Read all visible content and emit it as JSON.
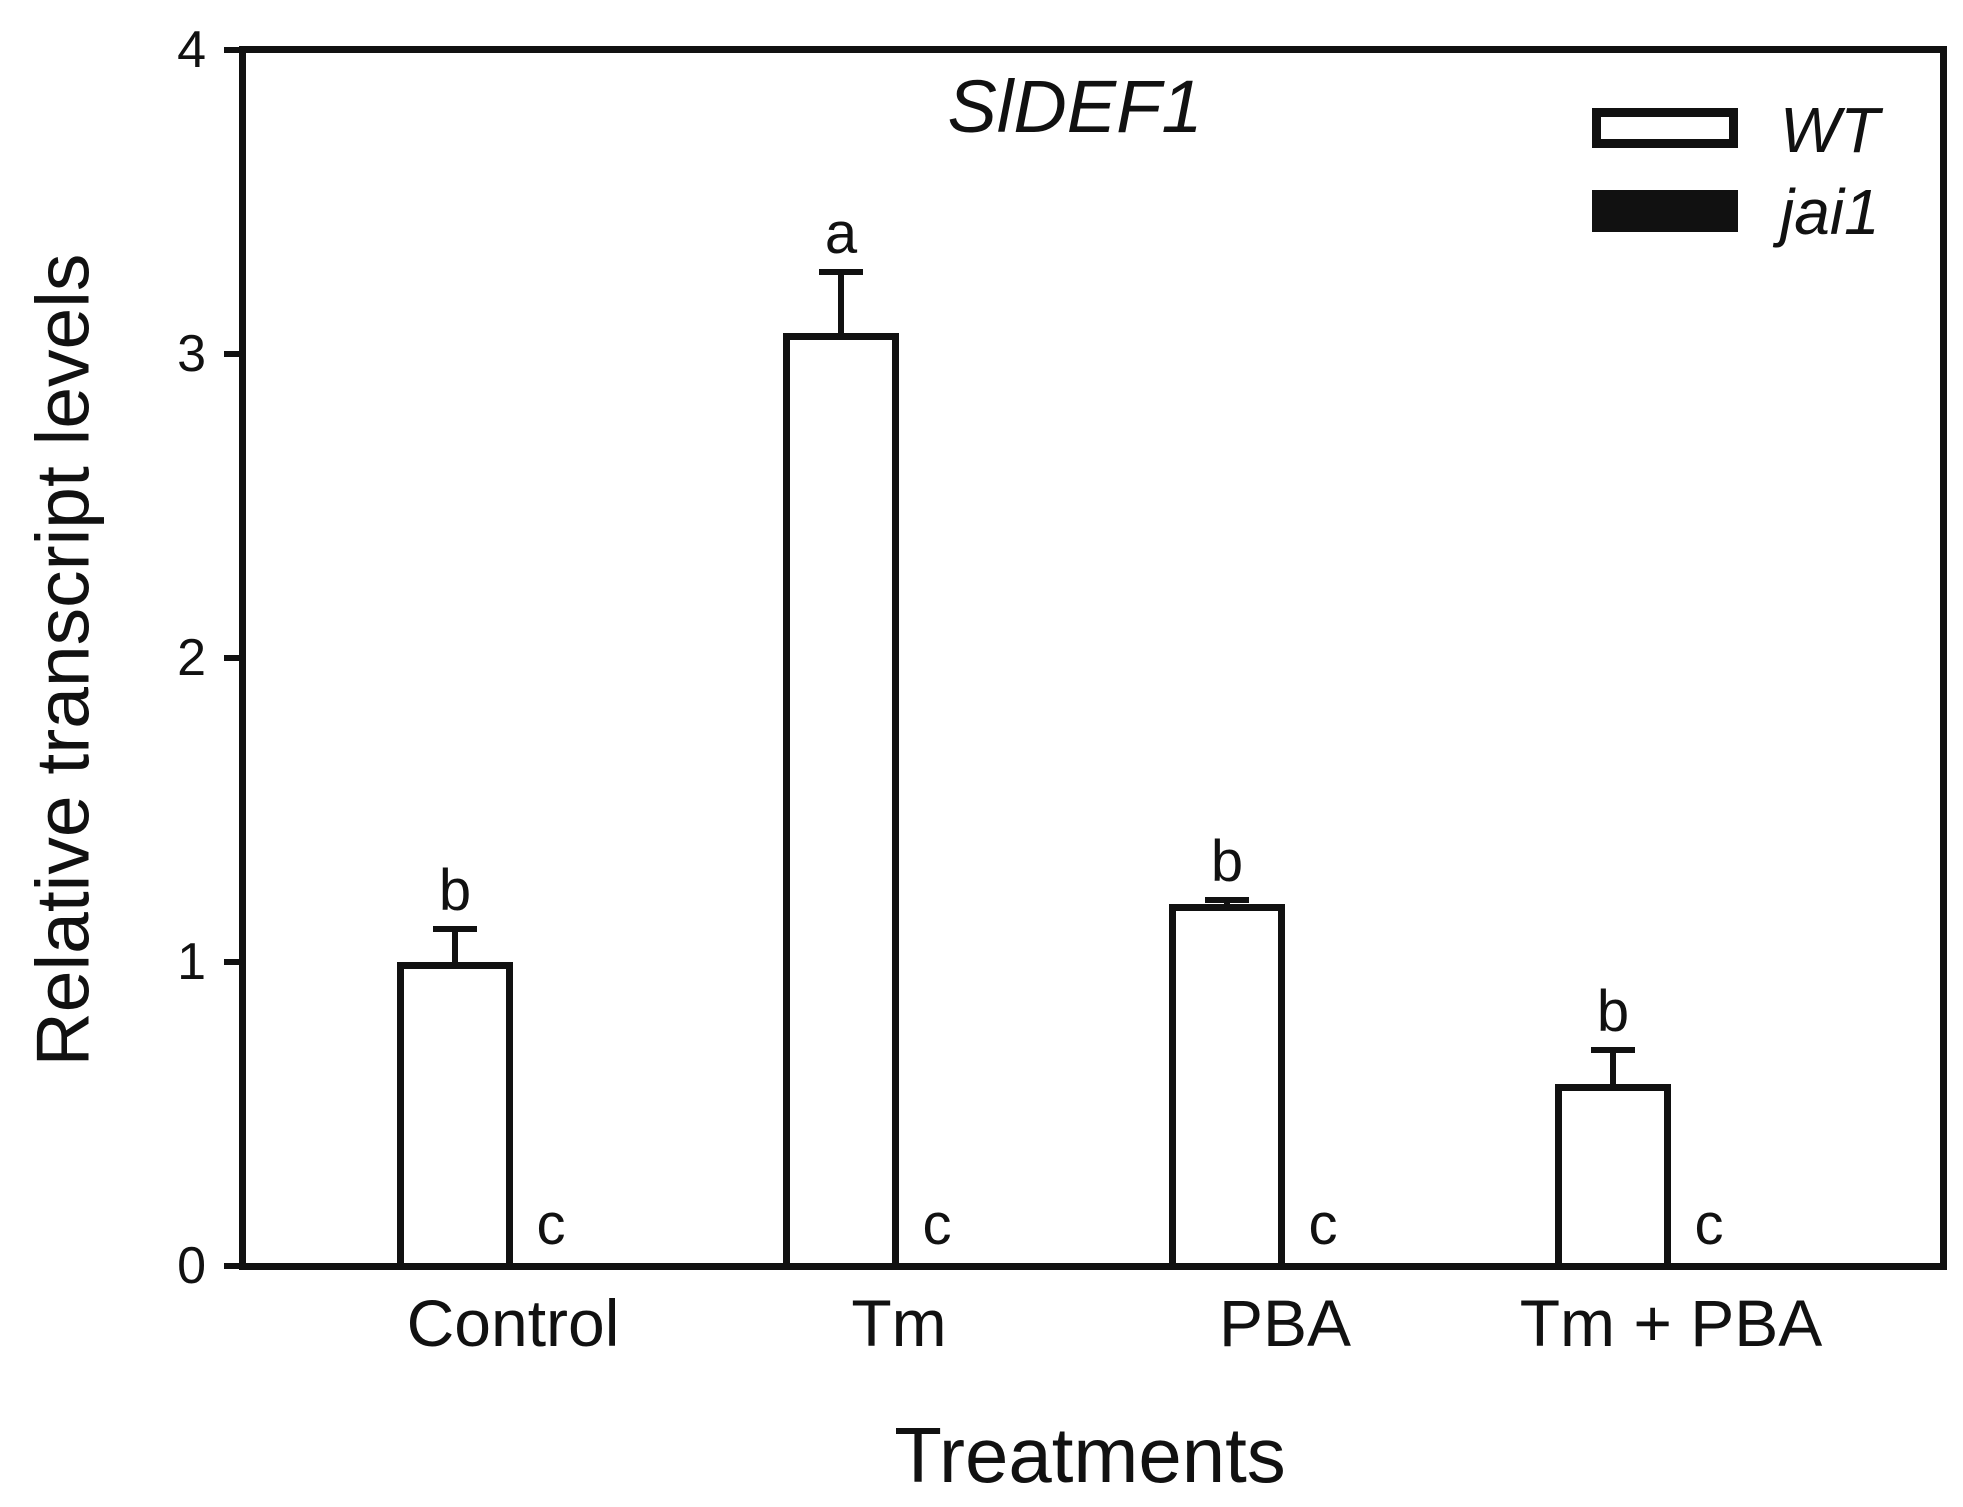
{
  "figure": {
    "background": "#ffffff",
    "ink": "#111111"
  },
  "chart_data": {
    "type": "bar",
    "title": "SlDEF1",
    "xlabel": "Treatments",
    "ylabel": "Relative transcript levels",
    "ylim": [
      0,
      4
    ],
    "yticks": [
      0,
      1,
      2,
      3,
      4
    ],
    "grid": false,
    "legend_position": "top-right-inside",
    "categories": [
      "Control",
      "Tm",
      "PBA",
      "Tm + PBA"
    ],
    "series": [
      {
        "name": "WT",
        "fill": "#ffffff",
        "border": "#111111",
        "values": [
          1.0,
          3.07,
          1.19,
          0.6
        ],
        "errors": [
          0.11,
          0.2,
          0.015,
          0.11
        ],
        "sig_letters": [
          "b",
          "a",
          "b",
          "b"
        ]
      },
      {
        "name": "jai1",
        "fill": "#111111",
        "border": "#111111",
        "values": [
          0.01,
          0.01,
          0.01,
          0.01
        ],
        "errors": [
          0,
          0,
          0,
          0
        ],
        "sig_letters": [
          "c",
          "c",
          "c",
          "c"
        ]
      }
    ]
  }
}
